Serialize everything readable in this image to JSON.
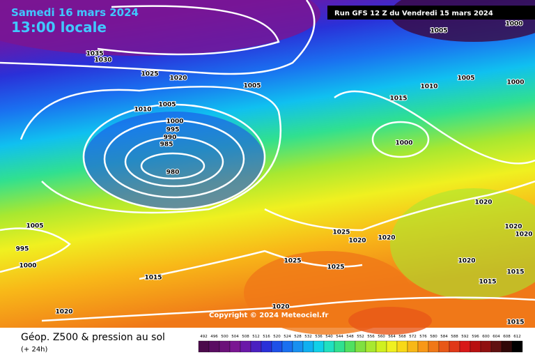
{
  "header": {
    "date": "Samedi 16 mars 2024",
    "time": "13:00 locale",
    "run": "Run GFS 12 Z du Vendredi 15 mars 2024"
  },
  "isobar_labels": [
    1035,
    1030,
    1025,
    1020,
    1005,
    1010,
    1005,
    1000,
    995,
    990,
    985,
    980,
    1005,
    1000,
    1005,
    1010,
    1000,
    1015,
    1000,
    1020,
    1020,
    1020,
    1025,
    1020,
    1020,
    1025,
    1025,
    1020,
    1015,
    1015,
    1015,
    1005,
    995,
    1000,
    1020,
    1020,
    1015
  ],
  "copyright": "Copyright © 2024 Meteociel.fr",
  "footer": {
    "title": "Géop. Z500 & pression au sol",
    "lead": "(+ 24h)"
  },
  "scale": {
    "labels": [
      492,
      496,
      500,
      504,
      508,
      512,
      516,
      520,
      524,
      528,
      532,
      536,
      540,
      544,
      548,
      552,
      556,
      560,
      564,
      568,
      572,
      576,
      580,
      584,
      588,
      592,
      596,
      600,
      604,
      608,
      612
    ],
    "colors": [
      "#4b0a4b",
      "#5a0d62",
      "#6b1079",
      "#7a1592",
      "#6a18a8",
      "#4a20c0",
      "#2a30d8",
      "#1e50e8",
      "#1a70f0",
      "#1890f0",
      "#10b0f0",
      "#10d0e8",
      "#20e0c0",
      "#30e090",
      "#50e060",
      "#80e040",
      "#a8e830",
      "#d0f020",
      "#f0f020",
      "#f8d818",
      "#f8b818",
      "#f89818",
      "#f07818",
      "#e85818",
      "#e03818",
      "#d81818",
      "#b81010",
      "#901010",
      "#601010",
      "#300808",
      "#000000"
    ]
  }
}
